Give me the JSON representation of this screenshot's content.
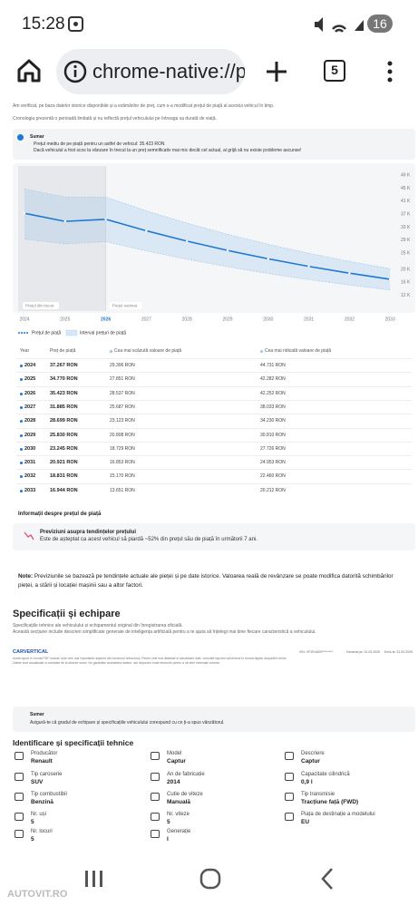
{
  "status_bar": {
    "time": "15:28",
    "battery": "16"
  },
  "browser": {
    "url": "chrome-native://p",
    "tabs": "5"
  },
  "intro": [
    "Am verificat, pe baza datelor istorice disponibile și a estimărilor de preț, cum s-a modificat prețul de piață al acestui vehicul în timp.",
    "Cronologia prezentă o perioadă limitată și nu reflectă prețul vehiculului pe întreaga sa durată de viață."
  ],
  "summary": {
    "title": "Sumar",
    "bullets": [
      "Prețul mediu de pe piață pentru un astfel de vehicul: 35.423 RON",
      "Dacă vehiculul a fost scos la vânzare în trecut la un preț semnificativ mai mic decât cel actual, ai grijă să nu existe probleme ascunse!"
    ]
  },
  "chart_data": {
    "type": "line",
    "categories": [
      "2024",
      "2025",
      "2026",
      "2027",
      "2028",
      "2029",
      "2030",
      "2031",
      "2032",
      "2033"
    ],
    "series": [
      {
        "name": "Preț de piață",
        "color": "#1f78d1",
        "values": [
          37267,
          34770,
          35423,
          31885,
          28699,
          25830,
          23245,
          20921,
          18831,
          16944
        ],
        "value_labels": [
          "37.267 RON",
          "34.770 RON",
          "35.423 RON",
          "31.885 RON",
          "28.699 RON",
          "25.830 RON",
          "23.245 RON",
          "20.921 RON",
          "18.831 RON",
          "16.944 RON"
        ]
      },
      {
        "name": "Cea mai scăzută valoare de piață",
        "color": "#9cc3ea",
        "values": [
          29306,
          27851,
          28537,
          25687,
          23123,
          20808,
          18729,
          16853,
          15170,
          13651
        ],
        "value_labels": [
          "29.306 RON",
          "27.851 RON",
          "28.537 RON",
          "25.687 RON",
          "23.123 RON",
          "20.808 RON",
          "18.729 RON",
          "16.853 RON",
          "15.170 RON",
          "13.651 RON"
        ]
      },
      {
        "name": "Cea mai ridicată valoare de piață",
        "color": "#9cc3ea",
        "values": [
          44731,
          42282,
          42252,
          38033,
          34230,
          30810,
          27726,
          24953,
          22460,
          20212
        ],
        "value_labels": [
          "44.731 RON",
          "42.282 RON",
          "42.252 RON",
          "38.033 RON",
          "34.230 RON",
          "30.810 RON",
          "27.726 RON",
          "24.953 RON",
          "22.460 RON",
          "20.212 RON"
        ]
      }
    ],
    "ylim": [
      8000,
      51000
    ],
    "yticks": [
      {
        "value": 49000,
        "label": "49 K"
      },
      {
        "value": 45000,
        "label": "45 K"
      },
      {
        "value": 41000,
        "label": "41 K"
      },
      {
        "value": 37000,
        "label": "37 K"
      },
      {
        "value": 33000,
        "label": "33 K"
      },
      {
        "value": 29000,
        "label": "29 K"
      },
      {
        "value": 25000,
        "label": "25 K"
      },
      {
        "value": 20000,
        "label": "20 K"
      },
      {
        "value": 16000,
        "label": "16 K"
      },
      {
        "value": 12000,
        "label": "12 K"
      }
    ],
    "grid": false,
    "past_label": "Prețul din trecut",
    "estimate_label": "Prețul estimat",
    "legend": [
      "Prețul de piață",
      "Interval prețuri de piață"
    ],
    "year_header": "Year"
  },
  "market_info": {
    "title": "Informații despre prețul de piață",
    "box_title": "Previziuni asupra tendințelor prețului",
    "box_text": "Este de așteptat ca acest vehicul să piardă ~52% din prețul său de piață în următorii 7 ani."
  },
  "note": {
    "label": "Note:",
    "text": "Previziunile se bazează pe tendințele actuale ale pieței și pe date istorice. Valoarea reală de revânzare se poate modifica datorită schimbărilor pieței, a stării și locației mașinii sau a altor factori."
  },
  "specs_section": {
    "title": "Specificații și echipare",
    "lines": [
      "Specificațiile tehnice ale vehiculului și echipamentul original din înregistrarea oficială.",
      "Această secțiune include descrieri simplificate generate de inteligența artificială pentru a te ajuta să înțelegi mai bine fiecare caracteristică a vehiculului."
    ]
  },
  "footer": {
    "brand": "CARVERTICAL",
    "vin": "VIN: VF1RJA00*********",
    "generated": "Generat pe: 31.03.2025",
    "issued": "Emis la: 31.03.2025",
    "disclaimer": [
      "Acest raport în format PDF include doar cele mai importante aspecte ale istoricului vehiculului. Pentru cele mai detaliate și actualizate date, consultă raportul carVertical în format digital, disponibil online.",
      "Datele sunt actualizate și colectate de la diverse surse. Nu garantăm acuratețea datelor, dar depunem toate eforturile pentru a vă oferi informații corecte."
    ]
  },
  "summary2": {
    "title": "Sumar",
    "text": "Asigură-te că gradul de echipare și specificațiile vehiculului corespund cu ce ți-a spus vânzătorul."
  },
  "identification": {
    "title": "Identificare și specificații tehnice",
    "items": [
      {
        "label": "Producător",
        "value": "Renault"
      },
      {
        "label": "Model",
        "value": "Captur"
      },
      {
        "label": "Descriere",
        "value": "Captur"
      },
      {
        "label": "Tip caroserie",
        "value": "SUV"
      },
      {
        "label": "An de fabricație",
        "value": "2014"
      },
      {
        "label": "Capacitate cilindrică",
        "value": "0,9 l"
      },
      {
        "label": "Tip combustibil",
        "value": "Benzină"
      },
      {
        "label": "Cutie de viteze",
        "value": "Manuală"
      },
      {
        "label": "Tip transmisie",
        "value": "Tracțiune față (FWD)"
      },
      {
        "label": "Nr. uși",
        "value": "5"
      },
      {
        "label": "Nr. viteze",
        "value": "5"
      },
      {
        "label": "Piața de destinație a modelului",
        "value": "EU"
      },
      {
        "label": "Nr. locuri",
        "value": "5"
      },
      {
        "label": "Generație",
        "value": "I"
      }
    ]
  },
  "watermark": "AUTOVIT.RO"
}
